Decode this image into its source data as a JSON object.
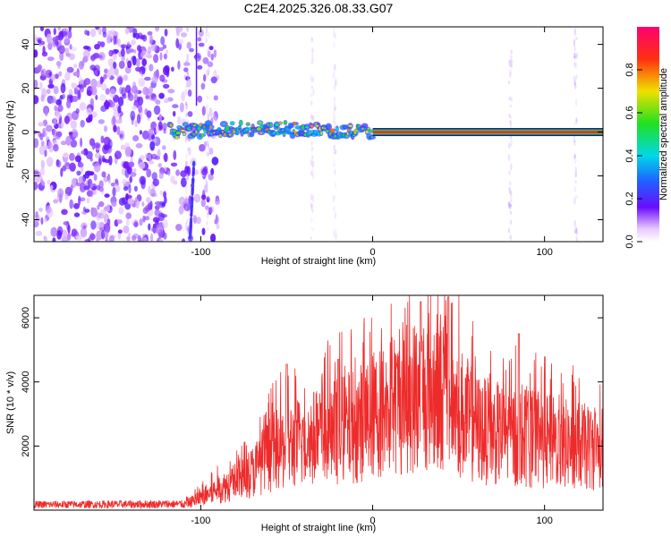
{
  "figure_title": "C2E4.2025.326.08.33.G07",
  "colors": {
    "snr_line": "#ee2b2b",
    "carrier_core": "#e83030",
    "axis": "#000000"
  },
  "chart_data": [
    {
      "type": "heatmap",
      "name": "spectrogram",
      "xlabel": "Height of straight line (km)",
      "ylabel": "Frequency (Hz)",
      "xlim": [
        -197,
        134
      ],
      "ylim": [
        -50,
        48
      ],
      "x_ticks": [
        -100,
        0,
        100
      ],
      "y_ticks": [
        -40,
        -20,
        0,
        20,
        40
      ],
      "x_tick_labels": [
        "-100",
        "0",
        "100"
      ],
      "y_tick_labels": [
        "-40",
        "-20",
        "0",
        "20",
        "40"
      ],
      "colorbar": {
        "label": "Normalized spectral amplitude",
        "range": [
          0,
          1
        ],
        "ticks": [
          0.0,
          0.2,
          0.4,
          0.6,
          0.8
        ],
        "tick_labels": [
          "0.0",
          "0.2",
          "0.4",
          "0.6",
          "0.8"
        ]
      },
      "carrier_track": {
        "x": [
          -118,
          -100,
          -80,
          -60,
          -50,
          -40,
          -30,
          -20,
          -10,
          0,
          50,
          100,
          134
        ],
        "y": [
          0.5,
          0.8,
          1.2,
          2.0,
          1.5,
          0.8,
          0.6,
          0.6,
          0.5,
          0.0,
          0.0,
          0.0,
          0.0
        ]
      },
      "noise_region_x": [
        -197,
        -90
      ]
    },
    {
      "type": "line",
      "name": "snr",
      "xlabel": "Height of straight line (km)",
      "ylabel": "SNR (10 * v/v)",
      "xlim": [
        -197,
        134
      ],
      "ylim": [
        0,
        6700
      ],
      "x_ticks": [
        -100,
        0,
        100
      ],
      "y_ticks": [
        2000,
        4000,
        6000
      ],
      "x_tick_labels": [
        "-100",
        "0",
        "100"
      ],
      "y_tick_labels": [
        "2000",
        "4000",
        "6000"
      ],
      "envelope": {
        "x": [
          -197,
          -110,
          -100,
          -90,
          -80,
          -70,
          -60,
          -50,
          -40,
          -30,
          -20,
          -10,
          0,
          10,
          20,
          30,
          40,
          50,
          60,
          70,
          80,
          90,
          100,
          110,
          120,
          134
        ],
        "y": [
          180,
          200,
          500,
          800,
          1100,
          1500,
          2200,
          2500,
          2700,
          2900,
          3100,
          3300,
          3700,
          4000,
          4300,
          4700,
          4700,
          3900,
          3200,
          3000,
          2900,
          2800,
          2700,
          2600,
          2500,
          2400
        ]
      },
      "peaks": [
        {
          "x": -50,
          "y": 4550
        },
        {
          "x": -20,
          "y": 4700
        },
        {
          "x": 28,
          "y": 6500
        },
        {
          "x": 44,
          "y": 6650
        },
        {
          "x": 85,
          "y": 5500
        }
      ]
    }
  ]
}
